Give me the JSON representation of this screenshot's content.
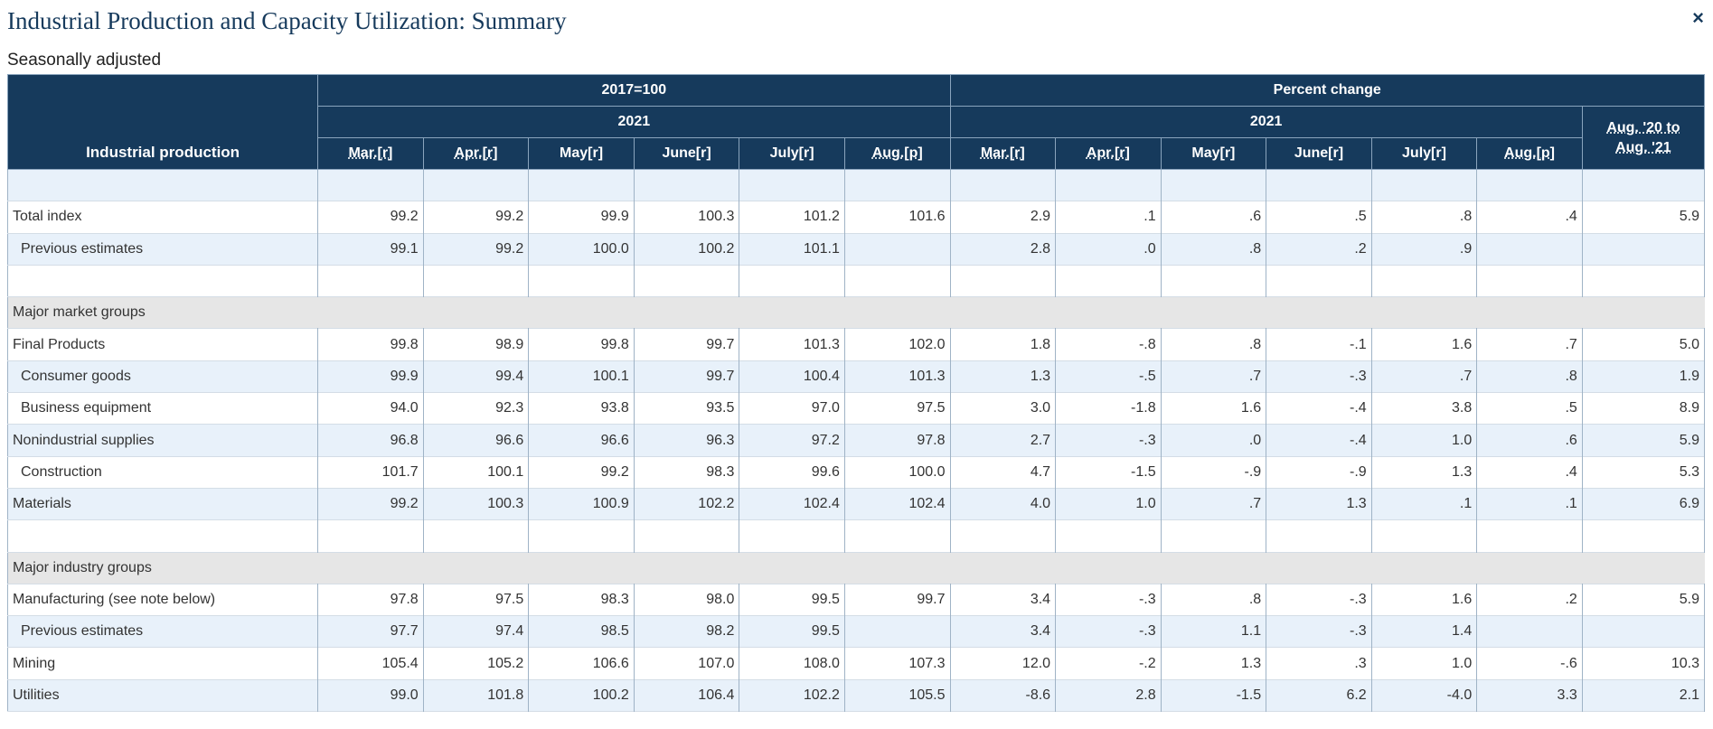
{
  "header": {
    "title": "Industrial Production and Capacity Utilization: Summary",
    "subtitle": "Seasonally adjusted",
    "close_label": "×"
  },
  "table": {
    "row_header": "Industrial production",
    "group1": "2017=100",
    "group2": "Percent change",
    "year1": "2021",
    "year2": "2021",
    "last_col": [
      "Aug. '20 to",
      "Aug. '21"
    ],
    "months1": [
      "Mar.[r]",
      "Apr.[r]",
      "May[r]",
      "June[r]",
      "July[r]",
      "Aug.[p]"
    ],
    "months2": [
      "Mar.[r]",
      "Apr.[r]",
      "May[r]",
      "June[r]",
      "July[r]",
      "Aug.[p]"
    ],
    "rows": [
      {
        "type": "blank",
        "style": "alt"
      },
      {
        "type": "data",
        "label": "Total index",
        "indent": false,
        "style": "white",
        "values": [
          "99.2",
          "99.2",
          "99.9",
          "100.3",
          "101.2",
          "101.6",
          "2.9",
          ".1",
          ".6",
          ".5",
          ".8",
          ".4",
          "5.9"
        ]
      },
      {
        "type": "data",
        "label": "Previous estimates",
        "indent": true,
        "style": "alt",
        "values": [
          "99.1",
          "99.2",
          "100.0",
          "100.2",
          "101.1",
          "",
          "2.8",
          ".0",
          ".8",
          ".2",
          ".9",
          "",
          ""
        ]
      },
      {
        "type": "blank",
        "style": "white"
      },
      {
        "type": "section",
        "label": "Major market groups"
      },
      {
        "type": "data",
        "label": "Final Products",
        "indent": false,
        "style": "white",
        "values": [
          "99.8",
          "98.9",
          "99.8",
          "99.7",
          "101.3",
          "102.0",
          "1.8",
          "-.8",
          ".8",
          "-.1",
          "1.6",
          ".7",
          "5.0"
        ]
      },
      {
        "type": "data",
        "label": "Consumer goods",
        "indent": true,
        "style": "alt",
        "values": [
          "99.9",
          "99.4",
          "100.1",
          "99.7",
          "100.4",
          "101.3",
          "1.3",
          "-.5",
          ".7",
          "-.3",
          ".7",
          ".8",
          "1.9"
        ]
      },
      {
        "type": "data",
        "label": "Business equipment",
        "indent": true,
        "style": "white",
        "values": [
          "94.0",
          "92.3",
          "93.8",
          "93.5",
          "97.0",
          "97.5",
          "3.0",
          "-1.8",
          "1.6",
          "-.4",
          "3.8",
          ".5",
          "8.9"
        ]
      },
      {
        "type": "data",
        "label": "Nonindustrial supplies",
        "indent": false,
        "style": "alt",
        "values": [
          "96.8",
          "96.6",
          "96.6",
          "96.3",
          "97.2",
          "97.8",
          "2.7",
          "-.3",
          ".0",
          "-.4",
          "1.0",
          ".6",
          "5.9"
        ]
      },
      {
        "type": "data",
        "label": "Construction",
        "indent": true,
        "style": "white",
        "values": [
          "101.7",
          "100.1",
          "99.2",
          "98.3",
          "99.6",
          "100.0",
          "4.7",
          "-1.5",
          "-.9",
          "-.9",
          "1.3",
          ".4",
          "5.3"
        ]
      },
      {
        "type": "data",
        "label": "Materials",
        "indent": false,
        "style": "alt",
        "values": [
          "99.2",
          "100.3",
          "100.9",
          "102.2",
          "102.4",
          "102.4",
          "4.0",
          "1.0",
          ".7",
          "1.3",
          ".1",
          ".1",
          "6.9"
        ]
      },
      {
        "type": "blank",
        "style": "white"
      },
      {
        "type": "section",
        "label": "Major industry groups"
      },
      {
        "type": "data",
        "label": "Manufacturing (see note below)",
        "indent": false,
        "style": "white",
        "values": [
          "97.8",
          "97.5",
          "98.3",
          "98.0",
          "99.5",
          "99.7",
          "3.4",
          "-.3",
          ".8",
          "-.3",
          "1.6",
          ".2",
          "5.9"
        ]
      },
      {
        "type": "data",
        "label": "Previous estimates",
        "indent": true,
        "style": "alt",
        "values": [
          "97.7",
          "97.4",
          "98.5",
          "98.2",
          "99.5",
          "",
          "3.4",
          "-.3",
          "1.1",
          "-.3",
          "1.4",
          "",
          ""
        ]
      },
      {
        "type": "data",
        "label": "Mining",
        "indent": false,
        "style": "white",
        "values": [
          "105.4",
          "105.2",
          "106.6",
          "107.0",
          "108.0",
          "107.3",
          "12.0",
          "-.2",
          "1.3",
          ".3",
          "1.0",
          "-.6",
          "10.3"
        ]
      },
      {
        "type": "data",
        "label": "Utilities",
        "indent": false,
        "style": "alt",
        "values": [
          "99.0",
          "101.8",
          "100.2",
          "106.4",
          "102.2",
          "105.5",
          "-8.6",
          "2.8",
          "-1.5",
          "6.2",
          "-4.0",
          "3.3",
          "2.1"
        ]
      }
    ]
  }
}
